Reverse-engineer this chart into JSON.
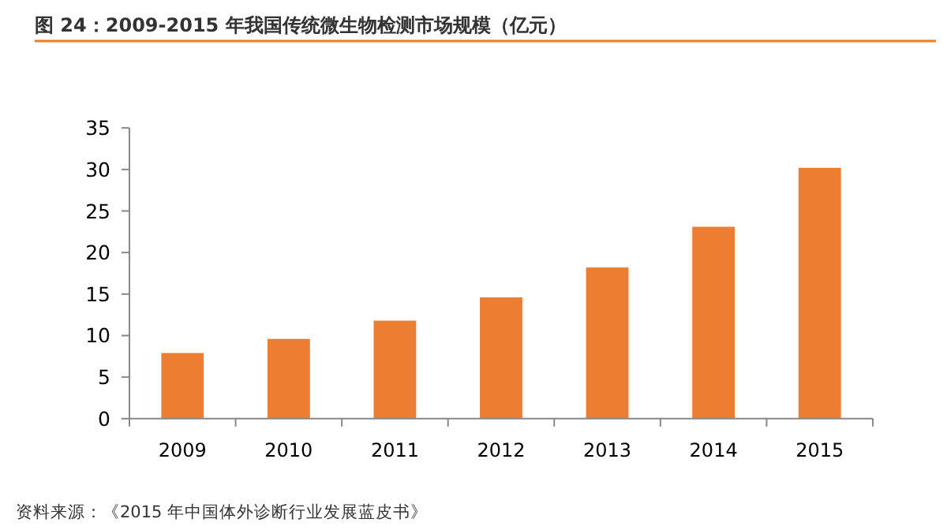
{
  "chart_data": {
    "type": "bar",
    "title": "图 24：2009-2015 年我国传统微生物检测市场规模（亿元）",
    "categories": [
      "2009",
      "2010",
      "2011",
      "2012",
      "2013",
      "2014",
      "2015"
    ],
    "values": [
      7.9,
      9.6,
      11.8,
      14.6,
      18.2,
      23.1,
      30.2
    ],
    "color": "#ed7d31",
    "ylim": [
      0,
      35
    ],
    "yticks": [
      0,
      5,
      10,
      15,
      20,
      25,
      30,
      35
    ],
    "annotations": [
      "资料来源：《2015 年中国体外诊断行业发展蓝皮书》"
    ]
  }
}
